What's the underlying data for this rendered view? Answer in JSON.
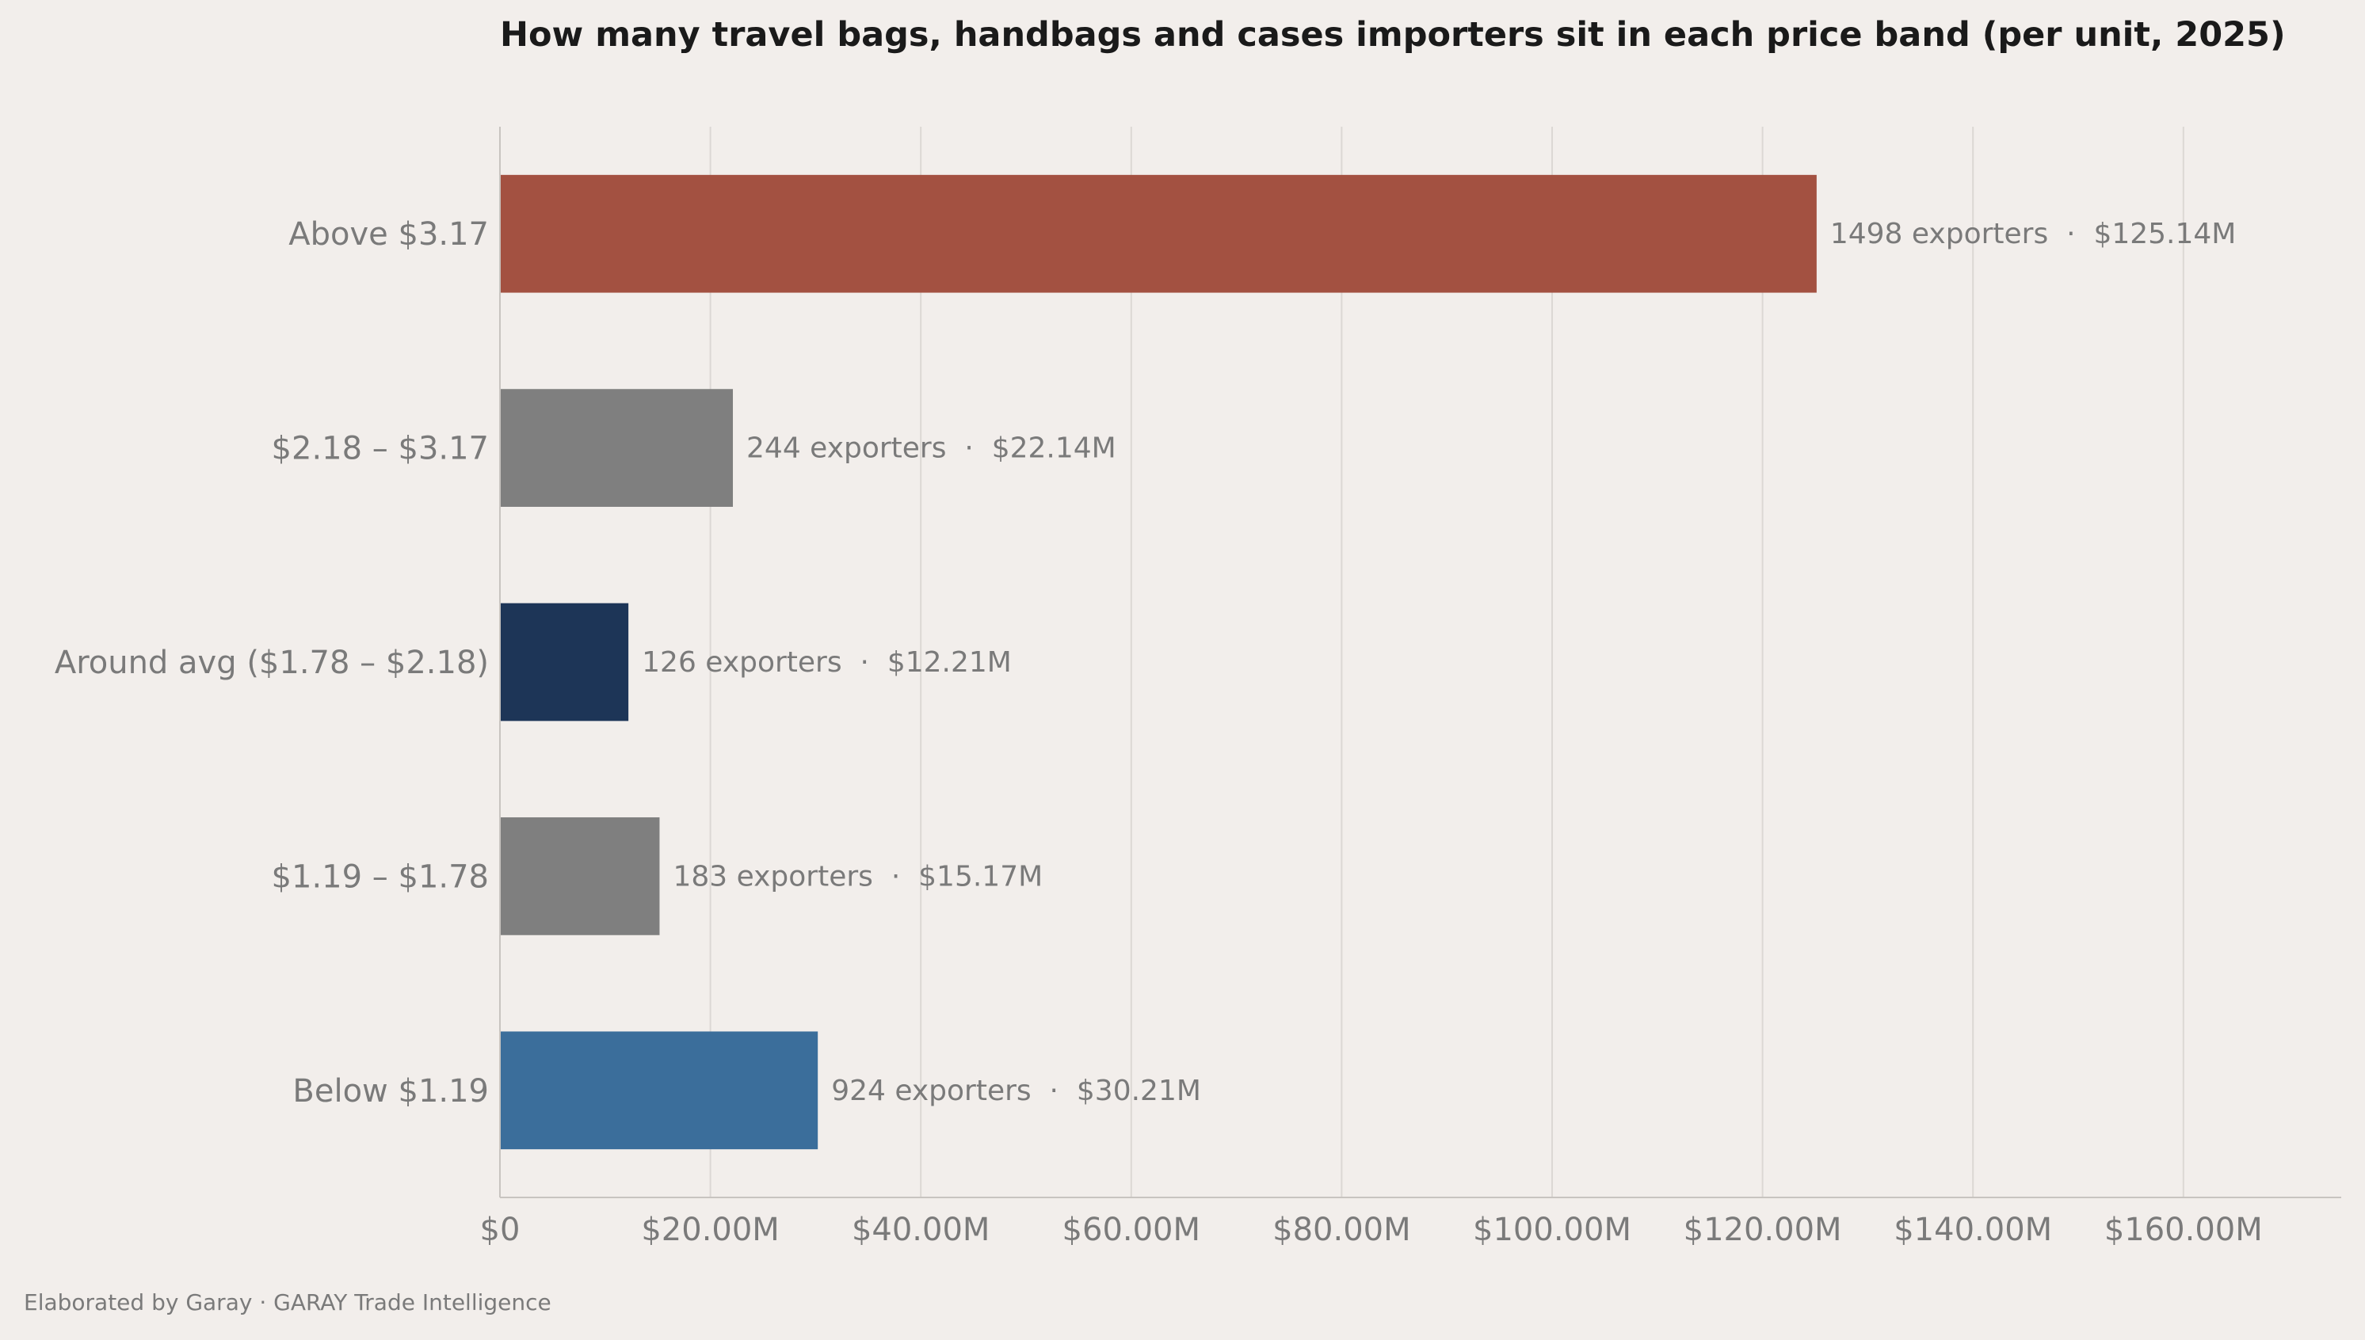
{
  "chart_data": {
    "type": "bar",
    "orientation": "horizontal",
    "title": "How many travel bags, handbags and cases importers sit in each price band (per unit, 2025)",
    "xlabel": "",
    "ylabel": "",
    "xlim": [
      0,
      175000000
    ],
    "x_ticks": [
      {
        "value": 0,
        "label": "$0"
      },
      {
        "value": 20000000,
        "label": "$20.00M"
      },
      {
        "value": 40000000,
        "label": "$40.00M"
      },
      {
        "value": 60000000,
        "label": "$60.00M"
      },
      {
        "value": 80000000,
        "label": "$80.00M"
      },
      {
        "value": 100000000,
        "label": "$100.00M"
      },
      {
        "value": 120000000,
        "label": "$120.00M"
      },
      {
        "value": 140000000,
        "label": "$140.00M"
      },
      {
        "value": 160000000,
        "label": "$160.00M"
      }
    ],
    "grid": "vertical",
    "categories": [
      "Above $3.17",
      "$2.18 – $3.17",
      "Around avg ($1.78 – $2.18)",
      "$1.19 – $1.78",
      "Below $1.19"
    ],
    "values": [
      125140000,
      22140000,
      12210000,
      15170000,
      30210000
    ],
    "exporters": [
      1498,
      244,
      126,
      183,
      924
    ],
    "bar_labels": [
      "1498 exporters  ·  $125.14M",
      "244 exporters  ·  $22.14M",
      "126 exporters  ·  $12.21M",
      "183 exporters  ·  $15.17M",
      "924 exporters  ·  $30.21M"
    ],
    "colors": [
      "#a35141",
      "#7f7f7f",
      "#1d3557",
      "#7f7f7f",
      "#3b6e9b"
    ]
  },
  "footer": "Elaborated by Garay  ·  GARAY Trade Intelligence"
}
